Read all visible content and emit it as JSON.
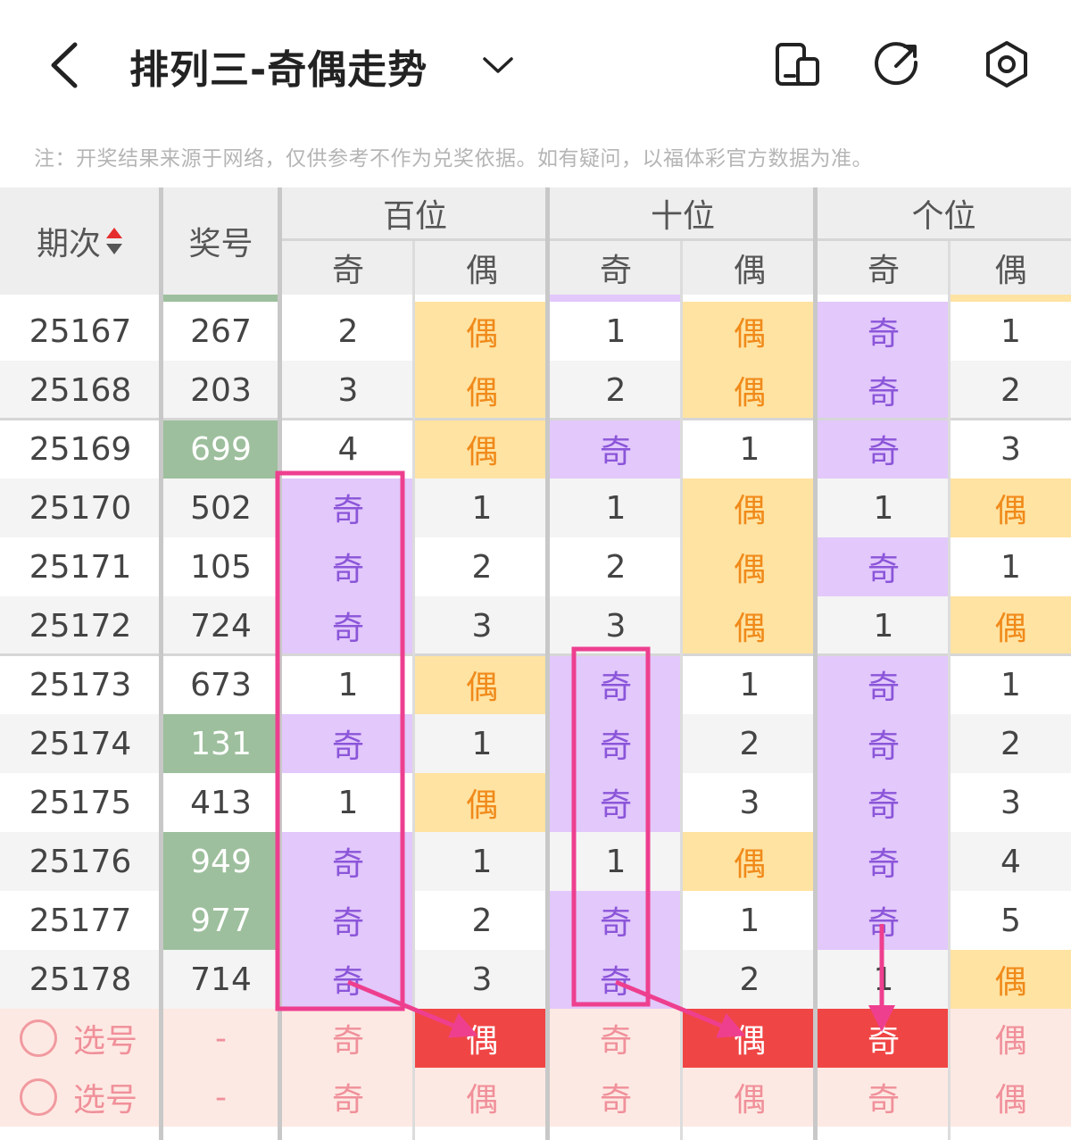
{
  "header": {
    "title": "排列三-奇偶走势",
    "icons": [
      "back-arrow",
      "chevron-down",
      "phone-icon",
      "share-icon",
      "settings-icon"
    ]
  },
  "notice": "注：开奖结果来源于网络，仅供参考不作为兑奖依据。如有疑问，以福体彩官方数据为准。",
  "table": {
    "col_issue": "期次",
    "col_number": "奖号",
    "groups": [
      "百位",
      "十位",
      "个位"
    ],
    "sub_odd": "奇",
    "sub_even": "偶",
    "rows": [
      {
        "issue": "25167",
        "number": "267",
        "highlight": false,
        "cells": [
          "2",
          "偶",
          "1",
          "偶",
          "奇",
          "1"
        ]
      },
      {
        "issue": "25168",
        "number": "203",
        "highlight": false,
        "cells": [
          "3",
          "偶",
          "2",
          "偶",
          "奇",
          "2"
        ]
      },
      {
        "issue": "25169",
        "number": "699",
        "highlight": true,
        "cells": [
          "4",
          "偶",
          "奇",
          "1",
          "奇",
          "3"
        ]
      },
      {
        "issue": "25170",
        "number": "502",
        "highlight": false,
        "cells": [
          "奇",
          "1",
          "1",
          "偶",
          "1",
          "偶"
        ]
      },
      {
        "issue": "25171",
        "number": "105",
        "highlight": false,
        "cells": [
          "奇",
          "2",
          "2",
          "偶",
          "奇",
          "1"
        ]
      },
      {
        "issue": "25172",
        "number": "724",
        "highlight": false,
        "cells": [
          "奇",
          "3",
          "3",
          "偶",
          "1",
          "偶"
        ]
      },
      {
        "issue": "25173",
        "number": "673",
        "highlight": false,
        "cells": [
          "1",
          "偶",
          "奇",
          "1",
          "奇",
          "1"
        ]
      },
      {
        "issue": "25174",
        "number": "131",
        "highlight": true,
        "cells": [
          "奇",
          "1",
          "奇",
          "2",
          "奇",
          "2"
        ]
      },
      {
        "issue": "25175",
        "number": "413",
        "highlight": false,
        "cells": [
          "1",
          "偶",
          "奇",
          "3",
          "奇",
          "3"
        ]
      },
      {
        "issue": "25176",
        "number": "949",
        "highlight": true,
        "cells": [
          "奇",
          "1",
          "1",
          "偶",
          "奇",
          "4"
        ]
      },
      {
        "issue": "25177",
        "number": "977",
        "highlight": true,
        "cells": [
          "奇",
          "2",
          "奇",
          "1",
          "奇",
          "5"
        ]
      },
      {
        "issue": "25178",
        "number": "714",
        "highlight": false,
        "cells": [
          "奇",
          "3",
          "奇",
          "2",
          "1",
          "偶"
        ]
      }
    ],
    "select_rows": [
      {
        "label": "选号",
        "number": "-",
        "cells": [
          "奇",
          "偶",
          "奇",
          "偶",
          "奇",
          "偶"
        ],
        "red": [
          false,
          true,
          false,
          true,
          true,
          false
        ]
      },
      {
        "label": "选号",
        "number": "-",
        "cells": [
          "奇",
          "偶",
          "奇",
          "偶",
          "奇",
          "偶"
        ],
        "red": [
          false,
          false,
          false,
          false,
          false,
          false
        ]
      }
    ]
  },
  "colors": {
    "odd_bg": "#e2c8fb",
    "even_bg": "#ffe3a2",
    "odd_text": "#8b55d9",
    "even_text": "#f08a1a",
    "green_bg": "#9dbf9d",
    "red_bg": "#f04545",
    "annotation": "#ee3f8f"
  }
}
